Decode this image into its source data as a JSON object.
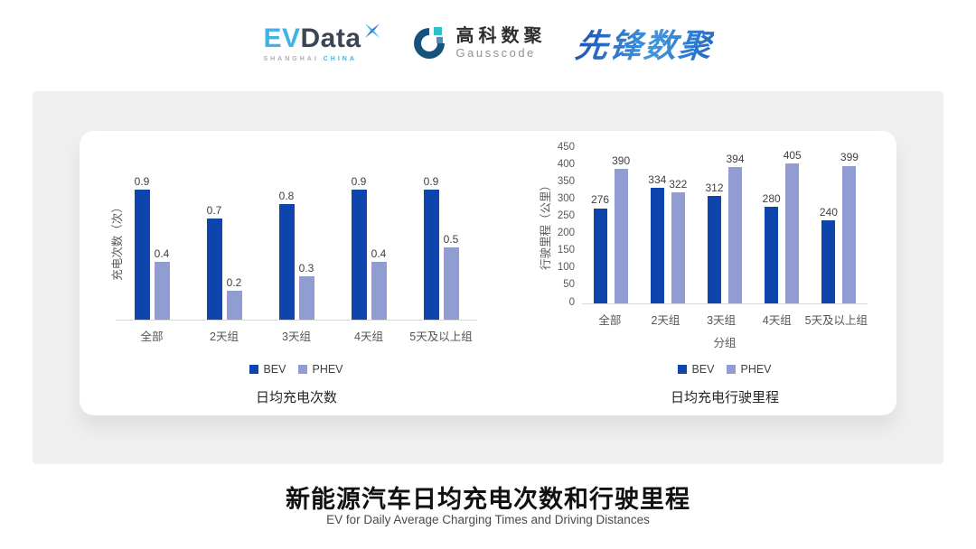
{
  "header": {
    "evdata": {
      "ev": "EV",
      "data": "Data",
      "sub_shanghai": "SHANGHAI",
      "sub_china": "CHINA"
    },
    "gausscode": {
      "cn": "高科数聚",
      "en": "Gausscode"
    },
    "pioneer": {
      "text": "先锋数聚"
    }
  },
  "colors": {
    "bev": "#0d45ad",
    "phev": "#919dd2"
  },
  "chart_data": [
    {
      "type": "bar",
      "title": "日均充电次数",
      "ylabel": "充电次数（次）",
      "xlabel": "",
      "categories": [
        "全部",
        "2天组",
        "3天组",
        "4天组",
        "5天及以上组"
      ],
      "series": [
        {
          "name": "BEV",
          "values": [
            0.9,
            0.7,
            0.8,
            0.9,
            0.9
          ]
        },
        {
          "name": "PHEV",
          "values": [
            0.4,
            0.2,
            0.3,
            0.4,
            0.5
          ]
        }
      ],
      "ylim": [
        0,
        1.0
      ],
      "yticks": [],
      "legend": [
        "BEV",
        "PHEV"
      ],
      "legend_position": "bottom",
      "grid": false,
      "value_labels": true
    },
    {
      "type": "bar",
      "title": "日均充电行驶里程",
      "ylabel": "行驶里程（公里）",
      "xlabel": "分组",
      "categories": [
        "全部",
        "2天组",
        "3天组",
        "4天组",
        "5天及以上组"
      ],
      "series": [
        {
          "name": "BEV",
          "values": [
            276,
            334,
            312,
            280,
            240
          ]
        },
        {
          "name": "PHEV",
          "values": [
            390,
            322,
            394,
            405,
            399
          ]
        }
      ],
      "ylim": [
        0,
        450
      ],
      "yticks": [
        0,
        50,
        100,
        150,
        200,
        250,
        300,
        350,
        400,
        450
      ],
      "legend": [
        "BEV",
        "PHEV"
      ],
      "legend_position": "bottom",
      "grid": false,
      "value_labels": true
    }
  ],
  "footer": {
    "title": "新能源汽车日均充电次数和行驶里程",
    "subtitle": "EV for Daily Average Charging Times and Driving Distances"
  }
}
